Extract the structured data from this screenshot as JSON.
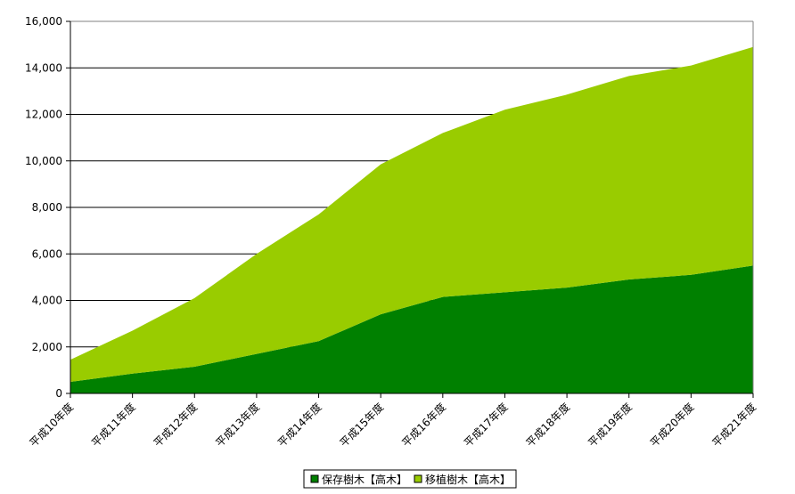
{
  "chart_data": {
    "type": "area",
    "stacked": true,
    "title": "",
    "xlabel": "",
    "ylabel": "",
    "categories": [
      "平成10年度",
      "平成11年度",
      "平成12年度",
      "平成13年度",
      "平成14年度",
      "平成15年度",
      "平成16年度",
      "平成17年度",
      "平成18年度",
      "平成19年度",
      "平成20年度",
      "平成21年度"
    ],
    "series": [
      {
        "name": "保存樹木【高木】",
        "color": "#008000",
        "values": [
          500,
          850,
          1150,
          1700,
          2250,
          3400,
          4150,
          4350,
          4550,
          4900,
          5100,
          5500
        ]
      },
      {
        "name": "移植樹木【高木】",
        "color": "#99cc00",
        "values": [
          950,
          1850,
          2950,
          4300,
          5450,
          6450,
          7050,
          7850,
          8300,
          8750,
          9000,
          9400
        ]
      }
    ],
    "ylim": [
      0,
      16000
    ],
    "yticks": [
      0,
      2000,
      4000,
      6000,
      8000,
      10000,
      12000,
      14000,
      16000
    ],
    "ytick_labels": [
      "0",
      "2,000",
      "4,000",
      "6,000",
      "8,000",
      "10,000",
      "12,000",
      "14,000",
      "16,000"
    ],
    "grid": true,
    "legend_position": "bottom"
  }
}
